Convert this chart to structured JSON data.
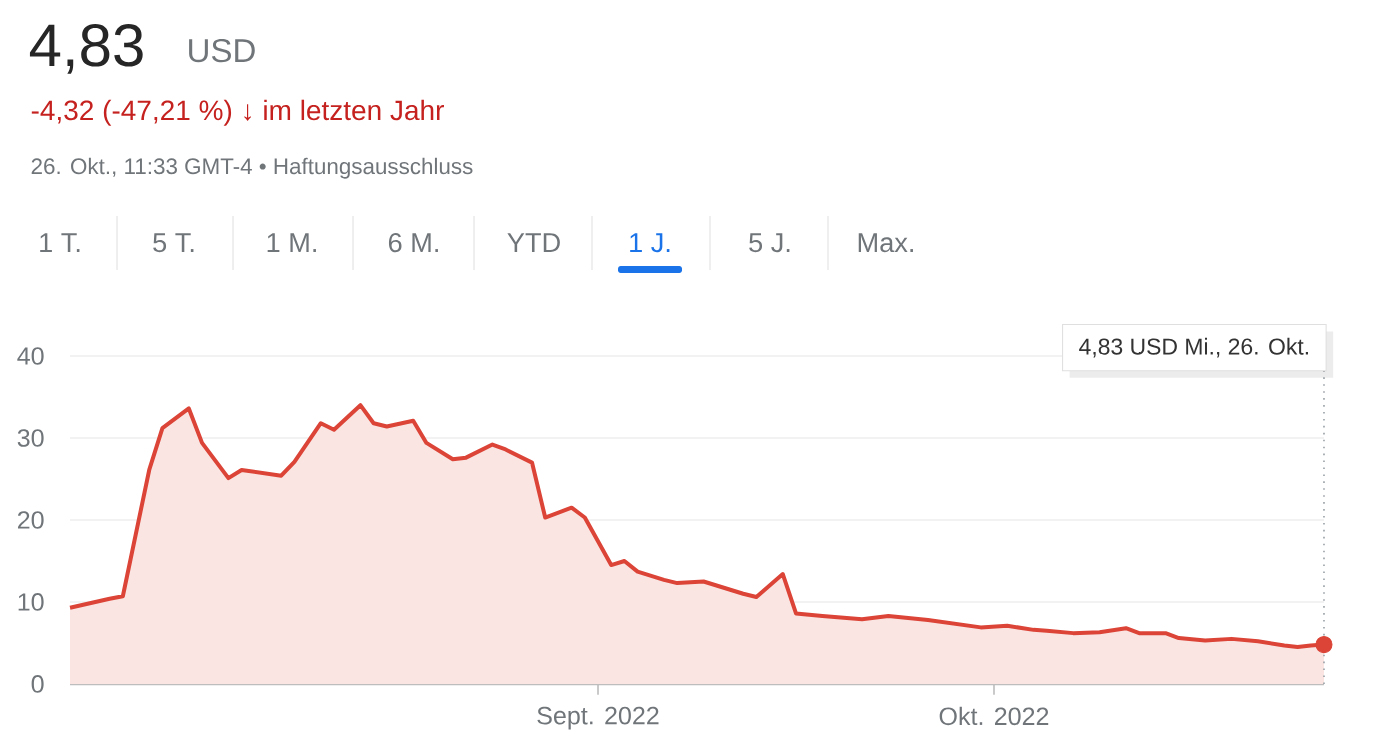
{
  "chart_data": {
    "type": "area",
    "title": "4,83",
    "subtitle": "-4,32 (-47,21 %) ↓ im letzten Jahr",
    "annotations": [
      "USD",
      "26. Okt., 11:33 GMT-4 • Haftungsausschluss",
      "1 T.",
      "5 T.",
      "1 M.",
      "6 M.",
      "YTD",
      "1 J.",
      "5 J.",
      "Max.",
      "4,83 USD  Mi., 26. Okt."
    ],
    "xlim": [
      "2022-07-23",
      "2022-10-26"
    ],
    "xticks": [
      {
        "value": "2022-09-01",
        "label": "Sept. 2022"
      },
      {
        "value": "2022-10-01",
        "label": "Okt. 2022"
      }
    ],
    "ylim": [
      0,
      40
    ],
    "yticks": [
      0,
      10,
      20,
      30,
      40
    ],
    "grid": "y",
    "line_style": "solid",
    "ref_lines": [
      {
        "axis": "x",
        "value": "2022-10-26",
        "color": "#9aa0a6",
        "line_style": "dotted"
      }
    ],
    "series": [
      {
        "color": "#db4437",
        "x": [
          "2022-07-23",
          "2022-07-26",
          "2022-07-27",
          "2022-07-29",
          "2022-07-30",
          "2022-08-01",
          "2022-08-02",
          "2022-08-04",
          "2022-08-05",
          "2022-08-08",
          "2022-08-09",
          "2022-08-11",
          "2022-08-12",
          "2022-08-14",
          "2022-08-15",
          "2022-08-16",
          "2022-08-18",
          "2022-08-19",
          "2022-08-21",
          "2022-08-22",
          "2022-08-24",
          "2022-08-25",
          "2022-08-27",
          "2022-08-28",
          "2022-08-30",
          "2022-08-31",
          "2022-09-02",
          "2022-09-03",
          "2022-09-04",
          "2022-09-06",
          "2022-09-07",
          "2022-09-09",
          "2022-09-12",
          "2022-09-13",
          "2022-09-15",
          "2022-09-16",
          "2022-09-18",
          "2022-09-21",
          "2022-09-23",
          "2022-09-26",
          "2022-09-30",
          "2022-10-02",
          "2022-10-04",
          "2022-10-05",
          "2022-10-07",
          "2022-10-09",
          "2022-10-11",
          "2022-10-12",
          "2022-10-14",
          "2022-10-15",
          "2022-10-17",
          "2022-10-19",
          "2022-10-21",
          "2022-10-23",
          "2022-10-24",
          "2022-10-25",
          "2022-10-26"
        ],
        "values": [
          9.3,
          10.4,
          10.7,
          26.1,
          31.2,
          33.6,
          29.4,
          25.1,
          26.1,
          25.4,
          27.1,
          31.8,
          31.0,
          34.0,
          31.8,
          31.4,
          32.1,
          29.4,
          27.4,
          27.6,
          29.2,
          28.6,
          27.0,
          20.3,
          21.5,
          20.3,
          14.5,
          15.0,
          13.7,
          12.7,
          12.3,
          12.5,
          11.0,
          10.6,
          13.4,
          8.6,
          8.3,
          7.9,
          8.3,
          7.8,
          6.9,
          7.1,
          6.6,
          6.5,
          6.2,
          6.3,
          6.8,
          6.2,
          6.2,
          5.6,
          5.3,
          5.5,
          5.2,
          4.7,
          4.5,
          4.7,
          4.8
        ]
      },
      {
        "type": "scatter",
        "marker": "circle",
        "color": "#db4437",
        "x": [
          "2022-10-26"
        ],
        "values": [
          4.8
        ]
      }
    ]
  }
}
